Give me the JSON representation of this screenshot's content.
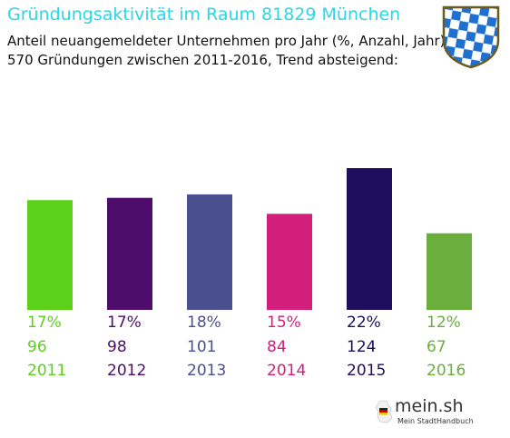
{
  "header": {
    "title": "Gründungsaktivität im Raum 81829 München",
    "subtitle_line1": "Anteil neuangemeldeter Unternehmen pro Jahr (%, Anzahl, Jahr)",
    "subtitle_line2": "570 Gründungen zwischen 2011-2016, Trend absteigend:"
  },
  "logo": {
    "icon": "bavarian-crest-icon",
    "colors": {
      "blue": "#1e6fd0",
      "white": "#ffffff",
      "outline": "#6b5a1e"
    }
  },
  "brand": {
    "name": "mein.sh",
    "tagline": "Mein StadtHandbuch",
    "icon": "germany-map-icon"
  },
  "chart_data": {
    "type": "bar",
    "categories": [
      "2011",
      "2012",
      "2013",
      "2014",
      "2015",
      "2016"
    ],
    "series": [
      {
        "values": [
          96,
          98,
          101,
          84,
          124,
          67
        ]
      }
    ],
    "percent_labels": [
      "17%",
      "17%",
      "18%",
      "15%",
      "22%",
      "12%"
    ],
    "count_labels": [
      "96",
      "98",
      "101",
      "84",
      "124",
      "67"
    ],
    "colors": [
      "#5bd11a",
      "#4e0c6b",
      "#4a4f8f",
      "#d31e7b",
      "#1f0d5e",
      "#6aae3d"
    ],
    "ylim": [
      0,
      124
    ],
    "grid": false,
    "legend": "none"
  }
}
